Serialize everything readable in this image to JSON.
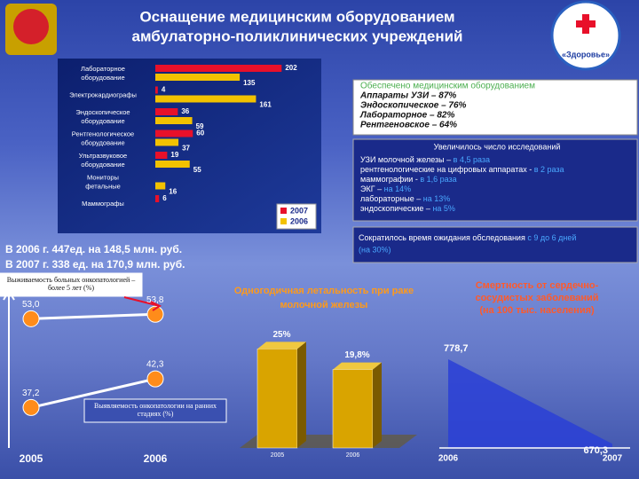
{
  "header": {
    "title_lines": [
      "Оснащение медицинским оборудованием",
      "амбулаторно-поликлинических учреждений"
    ],
    "logo_text": "«Здоровье»"
  },
  "equipped": {
    "title": "Обеспечено медицинским оборудованием",
    "lines": [
      "Аппараты УЗИ – 87%",
      "Эндоскопическое – 76%",
      "Лабораторное – 82%",
      "Рентгеновское – 64%"
    ]
  },
  "studies": {
    "title": "Увеличилось число исследований",
    "lines": [
      [
        "УЗИ молочной железы – ",
        "в 4,5 раза"
      ],
      [
        "рентгенологические  на цифровых аппаратах - ",
        "в 2 раза"
      ],
      [
        "маммографии - ",
        "в 1,6 раза"
      ],
      [
        "ЭКГ – ",
        "на 14%"
      ],
      [
        "лабораторные – ",
        "на 13%"
      ],
      [
        "эндоскопические – ",
        "на 5%"
      ]
    ]
  },
  "waiting": {
    "text": "Сократилось время ожидания обследования ",
    "highlight": "с 9 до 6 дней",
    "rest": "(на 30%)"
  },
  "purchases": [
    "В 2006 г. 447ед. на 148,5 млн. руб.",
    "В 2007 г. 338 ед. на 170,9 млн. руб."
  ],
  "chart_data": [
    {
      "type": "hbar",
      "categories": [
        "Лабораторное оборудование",
        "Электрокардиографы",
        "Эндоскопическое оборудование",
        "Рентгенологическое оборудование",
        "Ультразвуковое оборудование",
        "Мониторы фетальные",
        "Маммографы"
      ],
      "series": [
        {
          "name": "2007",
          "color": "#e8102a",
          "values": [
            202,
            4,
            36,
            60,
            19,
            null,
            6
          ]
        },
        {
          "name": "2006",
          "color": "#f2c200",
          "values": [
            135,
            161,
            59,
            37,
            55,
            16,
            null
          ]
        }
      ],
      "xlim": [
        0,
        220
      ],
      "legend": "lower right"
    },
    {
      "type": "line",
      "categories": [
        "2005",
        "2006"
      ],
      "ylim": [
        30,
        60
      ],
      "series": [
        {
          "name": "Выживаемость больных онкопатологией – более 5 лет (%)",
          "color": "#ff8c1a",
          "values": [
            53.0,
            53.8
          ],
          "value_labels": [
            "53,0",
            "53,8"
          ]
        },
        {
          "name": "Выявляемость онкопатологии на ранних стадиях (%)",
          "color": "#ff8c1a",
          "values": [
            37.2,
            42.3
          ],
          "value_labels": [
            "37,2",
            "42,3"
          ]
        }
      ]
    },
    {
      "type": "bar3d",
      "title": "Одногодичная летальность при раке молочной железы",
      "categories": [
        "2005",
        "2006"
      ],
      "values": [
        25,
        19.8
      ],
      "value_labels": [
        "25%",
        "19,8%"
      ],
      "color": "#d9a400",
      "ylim": [
        0,
        28
      ]
    },
    {
      "type": "area",
      "title": "Смертность от сердечно-сосудистых заболеваний (на 100 тыс. населения)",
      "categories": [
        "2006",
        "2007"
      ],
      "values": [
        778.7,
        670.3
      ],
      "value_labels": [
        "778,7",
        "670,3"
      ],
      "color": "#2a3fd6",
      "ylim": [
        665,
        790
      ]
    }
  ]
}
